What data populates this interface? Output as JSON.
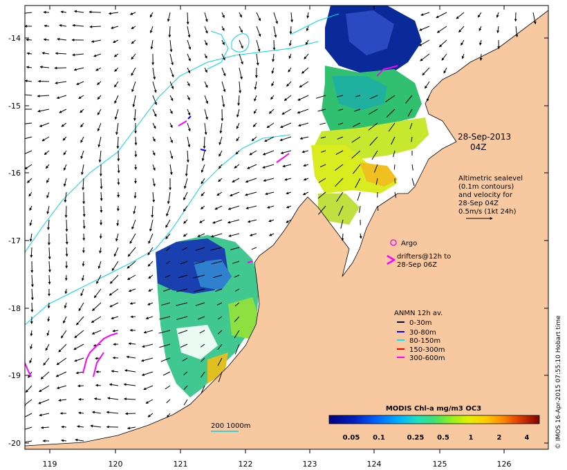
{
  "map": {
    "lon_ticks": [
      "119",
      "120",
      "121",
      "122",
      "123",
      "124",
      "125",
      "126"
    ],
    "lat_ticks": [
      "-14",
      "-15",
      "-16",
      "-17",
      "-18",
      "-19",
      "-20"
    ],
    "date_line1": "28-Sep-2013",
    "date_line2": "04Z",
    "altimetry_note": [
      "Altimetric sealevel",
      "(0.1m contours)",
      "and velocity for",
      "28-Sep 04Z",
      "0.5m/s (1kt 24h)"
    ],
    "argo_label": "Argo",
    "drifters_line1": "drifters@12h to",
    "drifters_line2": "28-Sep 06Z",
    "anmn_title": "ANMN 12h av.",
    "anmn_legend": [
      {
        "label": "0-30m",
        "color": "#000000"
      },
      {
        "label": "30-80m",
        "color": "#0000ff"
      },
      {
        "label": "80-150m",
        "color": "#00e5ff"
      },
      {
        "label": "150-300m",
        "color": "#ff0000"
      },
      {
        "label": "300-600m",
        "color": "#ff00ff"
      }
    ],
    "depth_contour_label": "200  1000m",
    "colorbar_title": "MODIS Chl-a mg/m3 OC3",
    "colorbar_ticks": [
      "0.05",
      "0.1",
      "0.25",
      "0.5",
      "1",
      "2",
      "4"
    ],
    "credit": "© IMOS 16-Apr-2015 07:55:10 Hobart time",
    "colors": {
      "land": "#f8c9a0",
      "contour": "#00d5ea",
      "argo": "#e020e0",
      "drifter": "#ff00ff"
    }
  }
}
